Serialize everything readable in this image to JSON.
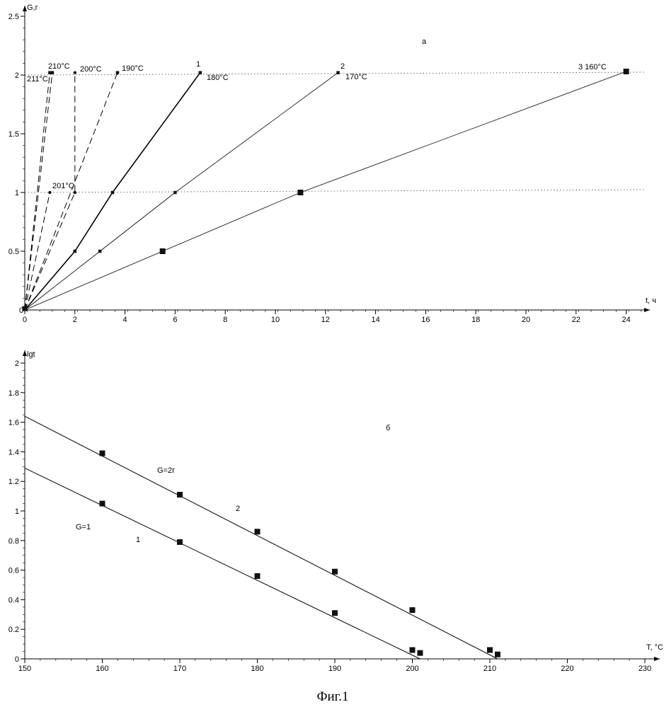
{
  "figure": {
    "caption": "Фиг.1"
  },
  "chart_data": [
    {
      "type": "line",
      "panel_label": "а",
      "xlabel": "t, ч",
      "ylabel": "G,г",
      "xlim": [
        0,
        25
      ],
      "ylim": [
        0,
        2.5
      ],
      "x_ticks": [
        0,
        2,
        4,
        6,
        8,
        10,
        12,
        14,
        16,
        18,
        20,
        22,
        24
      ],
      "x_tick_labels": [
        "0",
        "2",
        "4",
        "6",
        "8",
        "10",
        "12",
        "14",
        "16",
        "18",
        "20",
        "22",
        "24"
      ],
      "y_ticks": [
        0.5,
        1,
        1.5,
        2,
        2.5
      ],
      "y_tick_labels": [
        "0.5",
        "1",
        "1.5",
        "2",
        "2.5"
      ],
      "reference_lines": [
        1,
        2
      ],
      "series": [
        {
          "label": "3 160°C",
          "style": "solid-thin",
          "marker": "square-large",
          "points": [
            [
              0,
              0
            ],
            [
              5.5,
              0.5
            ],
            [
              11,
              1
            ],
            [
              24,
              2.03
            ]
          ]
        },
        {
          "label": "2",
          "temp": "170°C",
          "style": "solid-thin",
          "marker": "square-small",
          "points": [
            [
              0,
              0
            ],
            [
              3,
              0.5
            ],
            [
              6,
              1
            ],
            [
              12.5,
              2.02
            ]
          ]
        },
        {
          "label": "1",
          "temp": "180°C",
          "style": "solid-bold",
          "marker": "square-small",
          "points": [
            [
              0,
              0
            ],
            [
              2,
              0.5
            ],
            [
              3.5,
              1
            ],
            [
              7,
              2.02
            ]
          ]
        },
        {
          "label": "190°C",
          "style": "dashed",
          "marker": "square-small",
          "points": [
            [
              0,
              0
            ],
            [
              3.7,
              2.02
            ]
          ]
        },
        {
          "label": "200°C",
          "style": "dashed",
          "marker": "dot",
          "points": [
            [
              0,
              0
            ],
            [
              2,
              1
            ],
            [
              2,
              2.02
            ]
          ]
        },
        {
          "label": "201°C",
          "style": "dashed",
          "marker": "dot",
          "points": [
            [
              0,
              0
            ],
            [
              1,
              1
            ]
          ]
        },
        {
          "label": "210°C",
          "style": "dashed",
          "marker": "square-small",
          "points": [
            [
              0,
              0
            ],
            [
              1.1,
              2.02
            ]
          ]
        },
        {
          "label": "211°C",
          "style": "dashed",
          "marker": "square-small",
          "points": [
            [
              0,
              0
            ],
            [
              1,
              2.02
            ]
          ]
        }
      ],
      "annotations": [
        "210°C",
        "200°C",
        "190°C",
        "180°C",
        "170°C",
        "211°C",
        "201°C",
        "1",
        "2",
        "3 160°C"
      ]
    },
    {
      "type": "line",
      "panel_label": "б",
      "xlabel": "T, °C",
      "ylabel": "lgt",
      "xlim": [
        150,
        230
      ],
      "ylim": [
        0,
        2
      ],
      "x_ticks": [
        150,
        160,
        170,
        180,
        190,
        200,
        210,
        220,
        230
      ],
      "x_tick_labels": [
        "150",
        "160",
        "170",
        "180",
        "190",
        "200",
        "210",
        "220",
        "230"
      ],
      "y_ticks": [
        0,
        0.2,
        0.4,
        0.6,
        0.8,
        1,
        1.2,
        1.4,
        1.6,
        1.8,
        2
      ],
      "y_tick_labels": [
        "0",
        "0.2",
        "0.4",
        "0.6",
        "0.8",
        "1",
        "1.2",
        "1.4",
        "1.6",
        "1.8",
        "2"
      ],
      "series": [
        {
          "name": "G=2г",
          "label": "2",
          "x": [
            160,
            170,
            180,
            190,
            200,
            210,
            211
          ],
          "y": [
            1.39,
            1.11,
            0.86,
            0.59,
            0.33,
            0.06,
            0.03
          ],
          "fit_line": [
            [
              150,
              1.64
            ],
            [
              211,
              0
            ]
          ]
        },
        {
          "name": "G=1",
          "label": "1",
          "x": [
            160,
            170,
            180,
            190,
            200,
            201
          ],
          "y": [
            1.05,
            0.79,
            0.56,
            0.31,
            0.06,
            0.04
          ],
          "fit_line": [
            [
              150,
              1.29
            ],
            [
              201,
              0
            ]
          ]
        }
      ]
    }
  ]
}
